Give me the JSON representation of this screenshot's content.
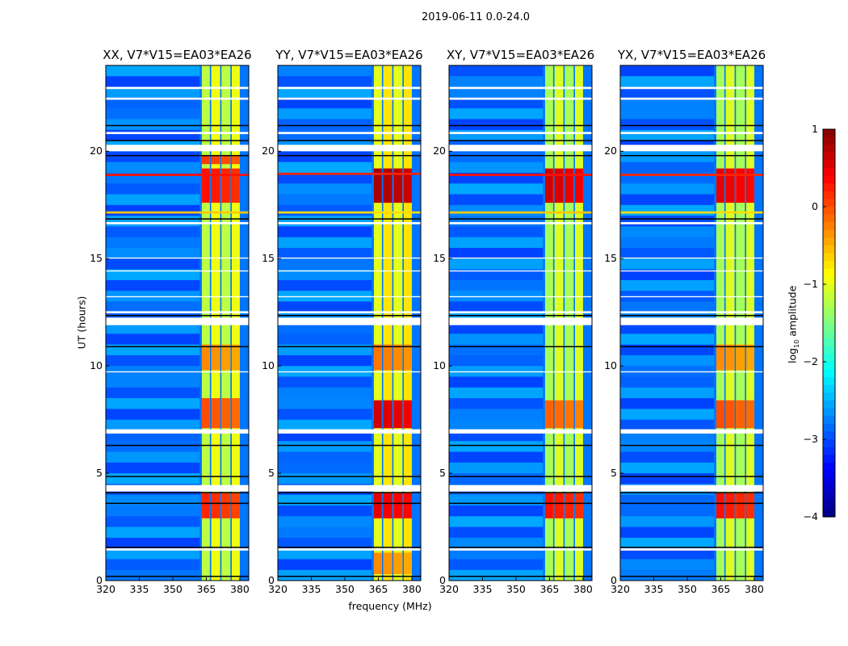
{
  "suptitle": "2019-06-11 0.0-24.0",
  "xlabel": "frequency (MHz)",
  "ylabel": "UT (hours)",
  "colorbar": {
    "label_main": "log",
    "label_sub": "10",
    "label_rest": " amplitude",
    "ticks": [
      "1",
      "0",
      "−1",
      "−2",
      "−3",
      "−4"
    ],
    "tick_values": [
      1,
      0,
      -1,
      -2,
      -3,
      -4
    ],
    "range": [
      -4,
      1
    ],
    "colormap": "jet"
  },
  "chart_data": {
    "type": "heatmap",
    "xlim": [
      320,
      384
    ],
    "ylim": [
      0,
      24
    ],
    "xticks": [
      320,
      335,
      350,
      365,
      380
    ],
    "xtick_labels": [
      "320",
      "335",
      "350",
      "365",
      "380"
    ],
    "yticks": [
      0,
      5,
      10,
      15,
      20
    ],
    "ytick_labels": [
      "0",
      "5",
      "10",
      "15",
      "20"
    ],
    "background_level": -2.8,
    "band_channels_mhz": [
      [
        363,
        366.6
      ],
      [
        367.2,
        371.2
      ],
      [
        371.8,
        375.8
      ],
      [
        376.4,
        380
      ]
    ],
    "flagged_white_hours": [
      [
        1.4,
        1.5
      ],
      [
        4.15,
        4.45
      ],
      [
        6.85,
        7.05
      ],
      [
        11.9,
        12.25
      ],
      [
        12.45,
        12.55
      ],
      [
        15.0,
        15.05
      ],
      [
        16.6,
        16.7
      ],
      [
        20.0,
        20.3
      ],
      [
        20.8,
        20.9
      ],
      [
        22.4,
        22.5
      ],
      [
        22.9,
        23.0
      ],
      [
        13.2,
        13.25
      ],
      [
        14.4,
        14.45
      ],
      [
        9.7,
        9.75
      ]
    ],
    "black_line_hours": [
      0.2,
      1.55,
      4.1,
      4.85,
      6.3,
      10.9,
      12.35,
      16.85,
      19.8,
      20.5,
      21.2,
      3.6
    ],
    "panels": [
      {
        "title": "XX, V7*V15=EA03*EA26",
        "band_level": -1.1,
        "hot": [
          [
            2.9,
            4.1,
            0.2
          ],
          [
            7.1,
            8.5,
            0.0
          ],
          [
            9.8,
            11.0,
            -0.3
          ],
          [
            17.6,
            19.2,
            0.3
          ],
          [
            19.4,
            19.8,
            0.1
          ]
        ],
        "rfi_rows": [
          [
            18.85,
            0.3
          ],
          [
            17.1,
            -0.6
          ]
        ]
      },
      {
        "title": "YY, V7*V15=EA03*EA26",
        "band_level": -0.9,
        "hot": [
          [
            2.9,
            4.1,
            0.5
          ],
          [
            7.1,
            8.4,
            0.6
          ],
          [
            9.8,
            11.0,
            -0.2
          ],
          [
            17.6,
            19.2,
            0.8
          ],
          [
            0.3,
            1.3,
            -0.3
          ]
        ],
        "rfi_rows": [
          [
            18.9,
            0.2
          ],
          [
            17.1,
            -0.7
          ]
        ]
      },
      {
        "title": "XY, V7*V15=EA03*EA26",
        "band_level": -1.2,
        "hot": [
          [
            2.9,
            4.1,
            0.3
          ],
          [
            7.1,
            8.4,
            -0.1
          ],
          [
            17.6,
            19.2,
            0.6
          ]
        ],
        "rfi_rows": [
          [
            18.85,
            0.3
          ],
          [
            17.1,
            -0.6
          ]
        ]
      },
      {
        "title": "YX, V7*V15=EA03*EA26",
        "band_level": -1.2,
        "hot": [
          [
            2.9,
            4.1,
            0.3
          ],
          [
            7.1,
            8.4,
            0.0
          ],
          [
            9.8,
            11.0,
            -0.3
          ],
          [
            17.6,
            19.2,
            0.5
          ]
        ],
        "rfi_rows": [
          [
            18.85,
            0.2
          ],
          [
            17.1,
            -0.7
          ]
        ]
      }
    ]
  }
}
